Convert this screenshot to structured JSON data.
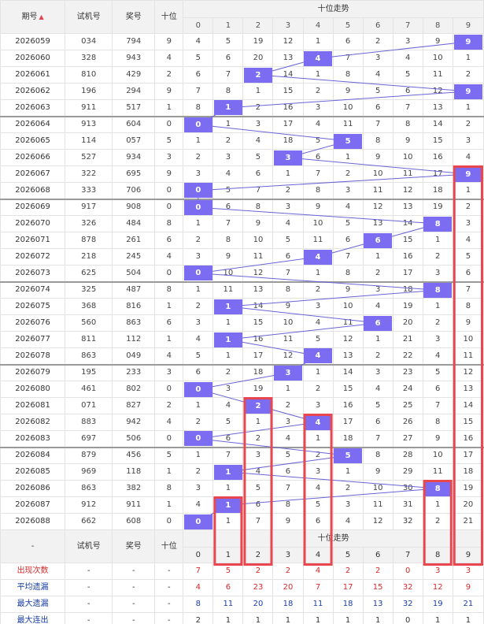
{
  "header": {
    "period_label": "期号",
    "trial_label": "试机号",
    "draw_label": "奖号",
    "tens_label": "十位",
    "trend_title": "十位走势",
    "digits": [
      "0",
      "1",
      "2",
      "3",
      "4",
      "5",
      "6",
      "7",
      "8",
      "9"
    ]
  },
  "rows": [
    {
      "period": "2026059",
      "trial": "034",
      "draw": "794",
      "tens": "9",
      "cells": [
        "4",
        "5",
        "19",
        "12",
        "1",
        "6",
        "2",
        "3",
        "9",
        "9"
      ]
    },
    {
      "period": "2026060",
      "trial": "328",
      "draw": "943",
      "tens": "4",
      "cells": [
        "5",
        "6",
        "20",
        "13",
        "4",
        "7",
        "3",
        "4",
        "10",
        "1"
      ]
    },
    {
      "period": "2026061",
      "trial": "810",
      "draw": "429",
      "tens": "2",
      "cells": [
        "6",
        "7",
        "2",
        "14",
        "1",
        "8",
        "4",
        "5",
        "11",
        "2"
      ]
    },
    {
      "period": "2026062",
      "trial": "196",
      "draw": "294",
      "tens": "9",
      "cells": [
        "7",
        "8",
        "1",
        "15",
        "2",
        "9",
        "5",
        "6",
        "12",
        "9"
      ]
    },
    {
      "period": "2026063",
      "trial": "911",
      "draw": "517",
      "tens": "1",
      "cells": [
        "8",
        "1",
        "2",
        "16",
        "3",
        "10",
        "6",
        "7",
        "13",
        "1"
      ]
    },
    {
      "period": "2026064",
      "trial": "913",
      "draw": "604",
      "tens": "0",
      "cells": [
        "0",
        "1",
        "3",
        "17",
        "4",
        "11",
        "7",
        "8",
        "14",
        "2"
      ]
    },
    {
      "period": "2026065",
      "trial": "114",
      "draw": "057",
      "tens": "5",
      "cells": [
        "1",
        "2",
        "4",
        "18",
        "5",
        "5",
        "8",
        "9",
        "15",
        "3"
      ]
    },
    {
      "period": "2026066",
      "trial": "527",
      "draw": "934",
      "tens": "3",
      "cells": [
        "2",
        "3",
        "5",
        "3",
        "6",
        "1",
        "9",
        "10",
        "16",
        "4"
      ]
    },
    {
      "period": "2026067",
      "trial": "322",
      "draw": "695",
      "tens": "9",
      "cells": [
        "3",
        "4",
        "6",
        "1",
        "7",
        "2",
        "10",
        "11",
        "17",
        "9"
      ]
    },
    {
      "period": "2026068",
      "trial": "333",
      "draw": "706",
      "tens": "0",
      "cells": [
        "0",
        "5",
        "7",
        "2",
        "8",
        "3",
        "11",
        "12",
        "18",
        "1"
      ]
    },
    {
      "period": "2026069",
      "trial": "917",
      "draw": "908",
      "tens": "0",
      "cells": [
        "0",
        "6",
        "8",
        "3",
        "9",
        "4",
        "12",
        "13",
        "19",
        "2"
      ]
    },
    {
      "period": "2026070",
      "trial": "326",
      "draw": "484",
      "tens": "8",
      "cells": [
        "1",
        "7",
        "9",
        "4",
        "10",
        "5",
        "13",
        "14",
        "8",
        "3"
      ]
    },
    {
      "period": "2026071",
      "trial": "878",
      "draw": "261",
      "tens": "6",
      "cells": [
        "2",
        "8",
        "10",
        "5",
        "11",
        "6",
        "6",
        "15",
        "1",
        "4"
      ]
    },
    {
      "period": "2026072",
      "trial": "218",
      "draw": "245",
      "tens": "4",
      "cells": [
        "3",
        "9",
        "11",
        "6",
        "4",
        "7",
        "1",
        "16",
        "2",
        "5"
      ]
    },
    {
      "period": "2026073",
      "trial": "625",
      "draw": "504",
      "tens": "0",
      "cells": [
        "0",
        "10",
        "12",
        "7",
        "1",
        "8",
        "2",
        "17",
        "3",
        "6"
      ]
    },
    {
      "period": "2026074",
      "trial": "325",
      "draw": "487",
      "tens": "8",
      "cells": [
        "1",
        "11",
        "13",
        "8",
        "2",
        "9",
        "3",
        "18",
        "8",
        "7"
      ]
    },
    {
      "period": "2026075",
      "trial": "368",
      "draw": "816",
      "tens": "1",
      "cells": [
        "2",
        "1",
        "14",
        "9",
        "3",
        "10",
        "4",
        "19",
        "1",
        "8"
      ]
    },
    {
      "period": "2026076",
      "trial": "560",
      "draw": "863",
      "tens": "6",
      "cells": [
        "3",
        "1",
        "15",
        "10",
        "4",
        "11",
        "6",
        "20",
        "2",
        "9"
      ]
    },
    {
      "period": "2026077",
      "trial": "811",
      "draw": "112",
      "tens": "1",
      "cells": [
        "4",
        "1",
        "16",
        "11",
        "5",
        "12",
        "1",
        "21",
        "3",
        "10"
      ]
    },
    {
      "period": "2026078",
      "trial": "863",
      "draw": "049",
      "tens": "4",
      "cells": [
        "5",
        "1",
        "17",
        "12",
        "4",
        "13",
        "2",
        "22",
        "4",
        "11"
      ]
    },
    {
      "period": "2026079",
      "trial": "195",
      "draw": "233",
      "tens": "3",
      "cells": [
        "6",
        "2",
        "18",
        "3",
        "1",
        "14",
        "3",
        "23",
        "5",
        "12"
      ]
    },
    {
      "period": "2026080",
      "trial": "461",
      "draw": "802",
      "tens": "0",
      "cells": [
        "0",
        "3",
        "19",
        "1",
        "2",
        "15",
        "4",
        "24",
        "6",
        "13"
      ]
    },
    {
      "period": "2026081",
      "trial": "071",
      "draw": "827",
      "tens": "2",
      "cells": [
        "1",
        "4",
        "2",
        "2",
        "3",
        "16",
        "5",
        "25",
        "7",
        "14"
      ]
    },
    {
      "period": "2026082",
      "trial": "883",
      "draw": "942",
      "tens": "4",
      "cells": [
        "2",
        "5",
        "1",
        "3",
        "4",
        "17",
        "6",
        "26",
        "8",
        "15"
      ]
    },
    {
      "period": "2026083",
      "trial": "697",
      "draw": "506",
      "tens": "0",
      "cells": [
        "0",
        "6",
        "2",
        "4",
        "1",
        "18",
        "7",
        "27",
        "9",
        "16"
      ]
    },
    {
      "period": "2026084",
      "trial": "879",
      "draw": "456",
      "tens": "5",
      "cells": [
        "1",
        "7",
        "3",
        "5",
        "2",
        "5",
        "8",
        "28",
        "10",
        "17"
      ]
    },
    {
      "period": "2026085",
      "trial": "969",
      "draw": "118",
      "tens": "1",
      "cells": [
        "2",
        "1",
        "4",
        "6",
        "3",
        "1",
        "9",
        "29",
        "11",
        "18"
      ]
    },
    {
      "period": "2026086",
      "trial": "863",
      "draw": "382",
      "tens": "8",
      "cells": [
        "3",
        "1",
        "5",
        "7",
        "4",
        "2",
        "10",
        "30",
        "8",
        "19"
      ]
    },
    {
      "period": "2026087",
      "trial": "912",
      "draw": "911",
      "tens": "1",
      "cells": [
        "4",
        "1",
        "6",
        "8",
        "5",
        "3",
        "11",
        "31",
        "1",
        "20"
      ]
    },
    {
      "period": "2026088",
      "trial": "662",
      "draw": "608",
      "tens": "0",
      "cells": [
        "0",
        "1",
        "7",
        "9",
        "6",
        "4",
        "12",
        "32",
        "2",
        "21"
      ]
    }
  ],
  "footer": {
    "dash": "-",
    "trial_label": "试机号",
    "draw_label": "奖号",
    "tens_label": "十位",
    "trend_title": "十位走势"
  },
  "stats": [
    {
      "label": "出现次数",
      "values": [
        "7",
        "5",
        "2",
        "2",
        "4",
        "2",
        "2",
        "0",
        "3",
        "3"
      ]
    },
    {
      "label": "平均遗漏",
      "values": [
        "4",
        "6",
        "23",
        "20",
        "7",
        "17",
        "15",
        "32",
        "12",
        "9"
      ]
    },
    {
      "label": "最大遗漏",
      "values": [
        "8",
        "11",
        "20",
        "18",
        "11",
        "18",
        "13",
        "32",
        "19",
        "21"
      ]
    },
    {
      "label": "最大连出",
      "values": [
        "2",
        "1",
        "1",
        "1",
        "1",
        "1",
        "1",
        "0",
        "1",
        "1"
      ]
    }
  ],
  "colors": {
    "highlight": "#7b6cf2",
    "trend_line": "#6b63d6",
    "box": "#e8474f",
    "stat_red": "#d62b2b",
    "stat_blue": "#1a3fa8"
  }
}
